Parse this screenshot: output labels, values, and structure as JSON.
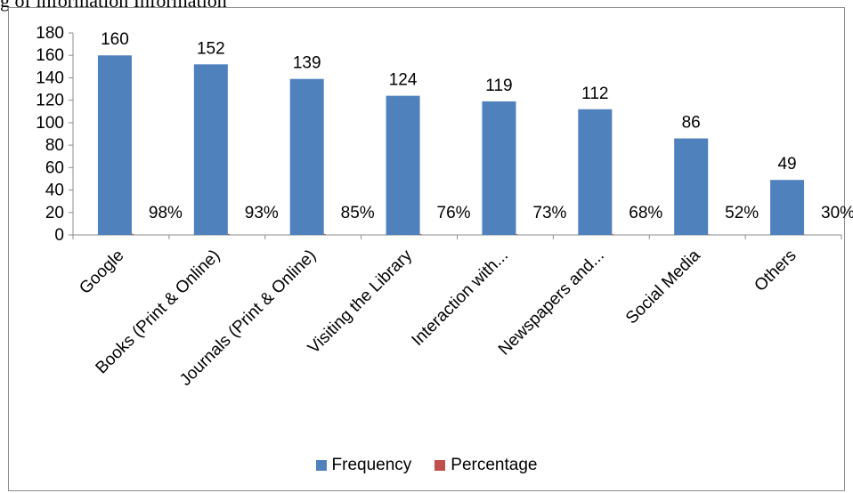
{
  "caption": "g of information Information",
  "chart_data": {
    "type": "bar",
    "categories": [
      "Google",
      "Books (Print & Online)",
      "Journals (Print & Online)",
      "Visiting the Library",
      "Interaction with...",
      "Newspapers and...",
      "Social Media",
      "Others"
    ],
    "series": [
      {
        "name": "Frequency",
        "values": [
          160,
          152,
          139,
          124,
          119,
          112,
          86,
          49
        ],
        "color": "#4f81bd"
      },
      {
        "name": "Percentage",
        "values": [
          98,
          93,
          85,
          76,
          73,
          68,
          52,
          30
        ],
        "value_labels": [
          "98%",
          "93%",
          "85%",
          "76%",
          "73%",
          "68%",
          "52%",
          "30%"
        ],
        "color": "#c0504d"
      }
    ],
    "ylim": [
      0,
      180
    ],
    "yticks": [
      0,
      20,
      40,
      60,
      80,
      100,
      120,
      140,
      160,
      180
    ],
    "grid": false,
    "legend": "bottom"
  }
}
